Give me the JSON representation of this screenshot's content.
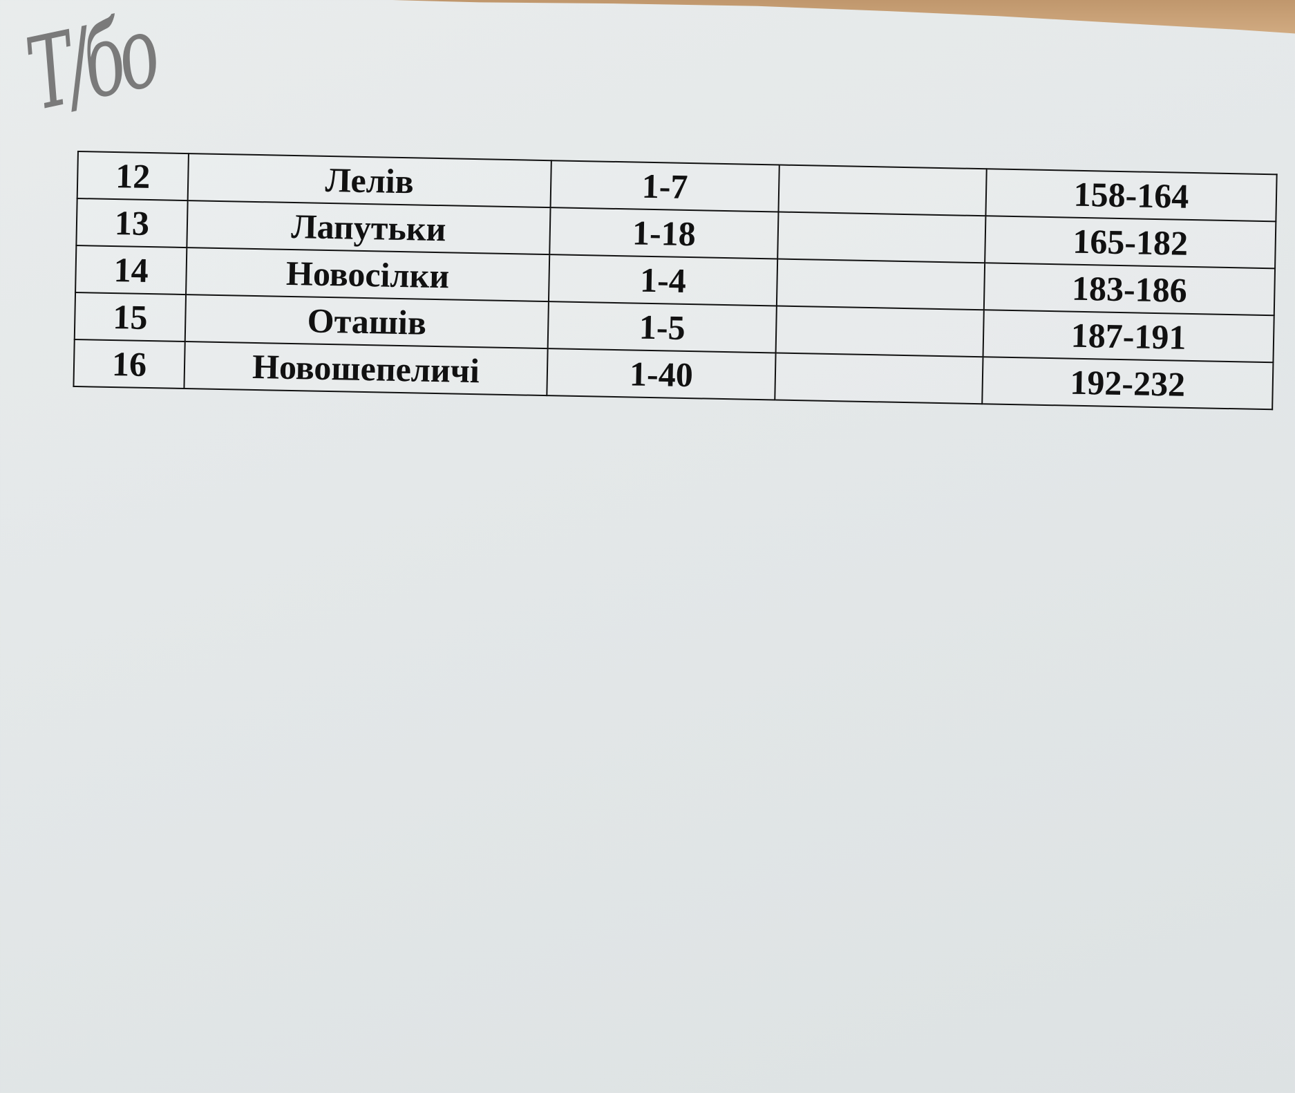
{
  "handwritten_mark": "Т/бо",
  "table": {
    "rows": [
      {
        "no": "12",
        "name": "Лелів",
        "range": "1-7",
        "extra": "",
        "pages": "158-164"
      },
      {
        "no": "13",
        "name": "Лапутьки",
        "range": "1-18",
        "extra": "",
        "pages": "165-182"
      },
      {
        "no": "14",
        "name": "Новосілки",
        "range": "1-4",
        "extra": "",
        "pages": "183-186"
      },
      {
        "no": "15",
        "name": "Оташів",
        "range": "1-5",
        "extra": "",
        "pages": "187-191"
      },
      {
        "no": "16",
        "name": "Новошепеличі",
        "range": "1-40",
        "extra": "",
        "pages": "192-232"
      }
    ]
  }
}
